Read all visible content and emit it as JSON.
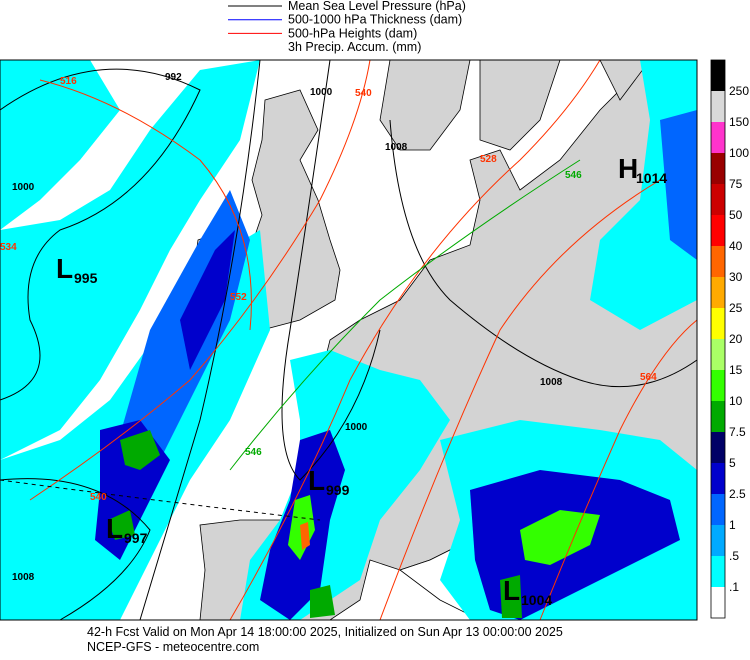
{
  "legend": {
    "items": [
      {
        "label": "Mean Sea Level Pressure (hPa)",
        "color": "#000000"
      },
      {
        "label": "500-1000 hPa Thickness (dam)",
        "color": "#0000ff"
      },
      {
        "label": "500-hPa Heights (dam)",
        "color": "#ff0000"
      },
      {
        "label": "3h Precip. Accum. (mm)"
      }
    ]
  },
  "colorbar": {
    "colors": [
      "#000000",
      "#d9d9d9",
      "#ff33cc",
      "#990000",
      "#cc0000",
      "#ff0000",
      "#ff6600",
      "#ffaa00",
      "#ffff00",
      "#aaff66",
      "#33ff00",
      "#00aa00",
      "#000066",
      "#0000cc",
      "#0066ff",
      "#00aaff",
      "#00ffff",
      "#ffffff"
    ],
    "labels": [
      "250",
      "150",
      "100",
      "75",
      "50",
      "40",
      "30",
      "25",
      "20",
      "15",
      "10",
      "7.5",
      "5",
      "2.5",
      "1",
      ".5",
      ".1"
    ]
  },
  "pressure_centers": [
    {
      "symbol": "L",
      "value": "995"
    },
    {
      "symbol": "H",
      "value": "1014"
    },
    {
      "symbol": "L",
      "value": "999"
    },
    {
      "symbol": "L",
      "value": "997"
    },
    {
      "symbol": "L",
      "value": "1004"
    }
  ],
  "contour_labels": [
    "516",
    "992",
    "1000",
    "540",
    "1008",
    "528",
    "546",
    "1000",
    "534",
    "1008",
    "1000",
    "546",
    "552",
    "564",
    "540",
    "1008"
  ],
  "footer": {
    "line1": "42-h Fcst Valid on Mon Apr 14 18:00:00 2025, Initialized on Sun Apr 13 00:00:00 2025",
    "line2": "NCEP-GFS - meteocentre.com"
  }
}
